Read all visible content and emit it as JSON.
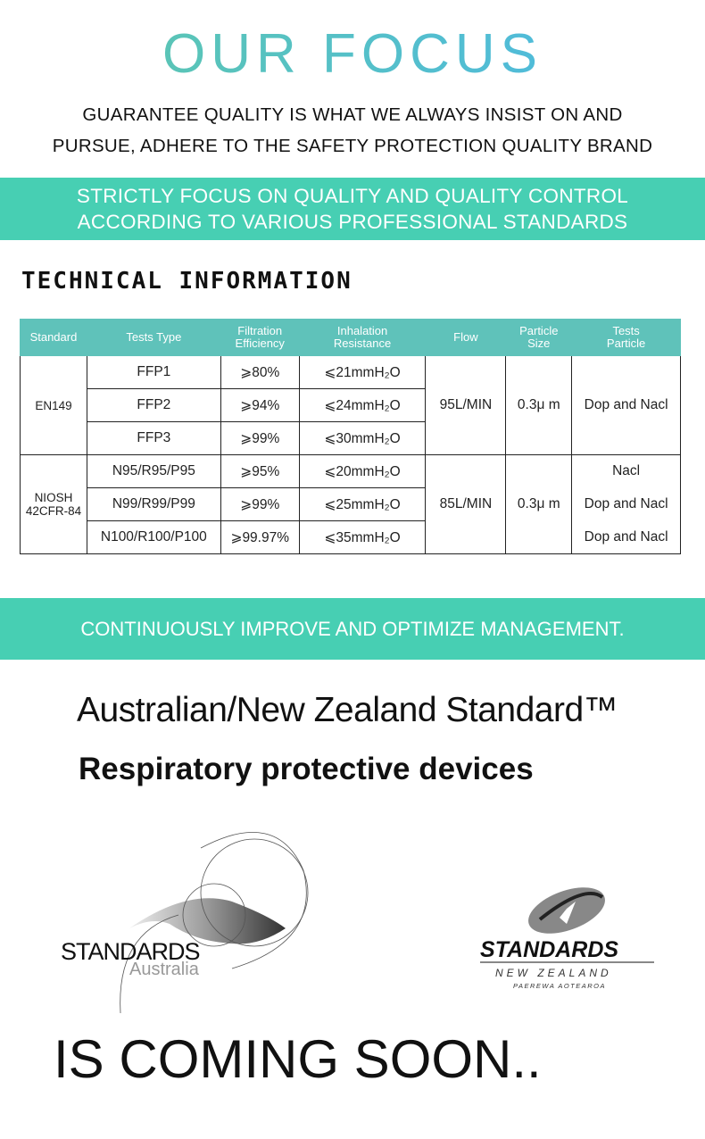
{
  "header": {
    "title": "OUR FOCUS",
    "subtitle_line1": "GUARANTEE QUALITY IS WHAT WE ALWAYS INSIST ON AND",
    "subtitle_line2": "PURSUE, ADHERE TO THE SAFETY PROTECTION QUALITY BRAND"
  },
  "band1": {
    "line1": "STRICTLY FOCUS ON QUALITY AND QUALITY CONTROL",
    "line2": "ACCORDING TO VARIOUS PROFESSIONAL STANDARDS"
  },
  "tech": {
    "heading": "TECHNICAL INFORMATION",
    "headers": {
      "standard": "Standard",
      "type": "Tests  Type",
      "eff1": "Filtration",
      "eff2": "Efficiency",
      "res1": "Inhalation",
      "res2": "Resistance",
      "flow": "Flow",
      "ps1": "Particle",
      "ps2": "Size",
      "tp1": "Tests",
      "tp2": "Particle"
    },
    "groups": [
      {
        "standard": "EN149",
        "standard2": "",
        "flow": "95L/MIN",
        "size": "0.3μ m",
        "particle": "Dop and Nacl",
        "rows": [
          {
            "type": "FFP1",
            "eff": "⩾80%",
            "res": "⩽21mmH₂O"
          },
          {
            "type": "FFP2",
            "eff": "⩾94%",
            "res": "⩽24mmH₂O"
          },
          {
            "type": "FFP3",
            "eff": "⩾99%",
            "res": "⩽30mmH₂O"
          }
        ]
      },
      {
        "standard": "NIOSH",
        "standard2": "42CFR-84",
        "flow": "85L/MIN",
        "size": "0.3μ m",
        "rows": [
          {
            "type": "N95/R95/P95",
            "eff": "⩾95%",
            "res": "⩽20mmH₂O",
            "particle": "Nacl"
          },
          {
            "type": "N99/R99/P99",
            "eff": "⩾99%",
            "res": "⩽25mmH₂O",
            "particle": "Dop and Nacl"
          },
          {
            "type": "N100/R100/P100",
            "eff": "⩾99.97%",
            "res": "⩽35mmH₂O",
            "particle": "Dop and Nacl"
          }
        ]
      }
    ]
  },
  "band2": {
    "text": "CONTINUOUSLY IMPROVE AND OPTIMIZE MANAGEMENT."
  },
  "standard": {
    "title": "Australian/New Zealand Standard™",
    "subtitle": "Respiratory protective devices"
  },
  "logos": {
    "au_line1": "STANDARDS",
    "au_line2": "Australia",
    "nz_line1": "STANDARDS",
    "nz_line2": "NEW ZEALAND",
    "nz_line3": "PAEREWA AOTEAROA"
  },
  "footer": {
    "text": "IS COMING SOON.."
  },
  "colors": {
    "accent": "#47cfb3",
    "table_header": "#5fc2ba"
  }
}
